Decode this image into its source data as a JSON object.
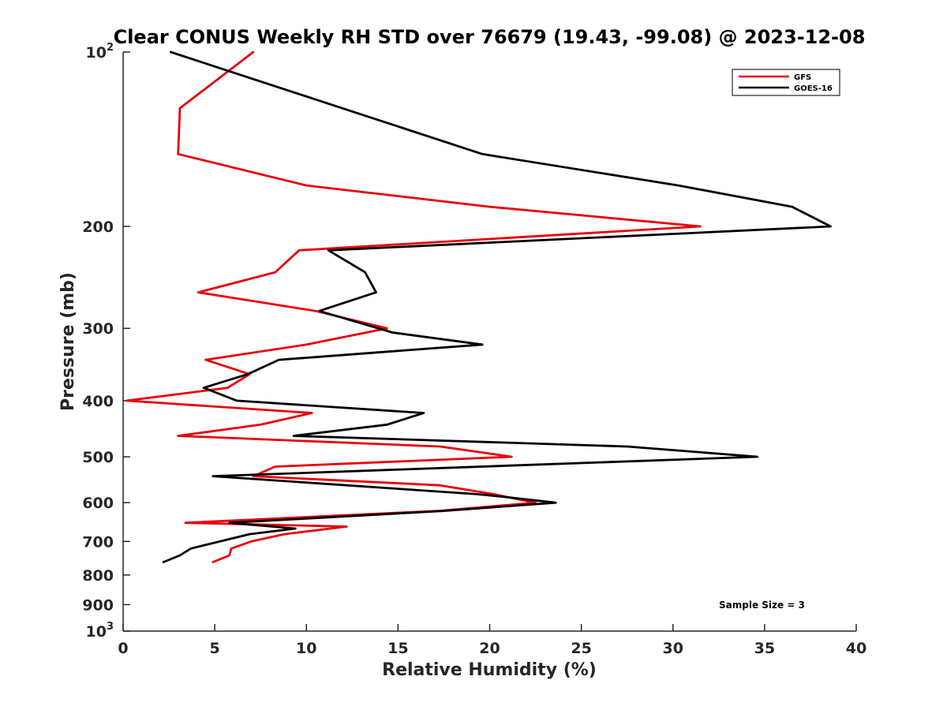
{
  "chart_data": {
    "type": "line",
    "title": "Clear CONUS Weekly RH STD over 76679 (19.43, -99.08) @ 2023-12-08",
    "xlabel": "Relative Humidity (%)",
    "ylabel": "Pressure (mb)",
    "xlim": [
      0,
      40
    ],
    "ylim": [
      100,
      1000
    ],
    "y_scale": "log",
    "y_reversed": true,
    "x_ticks": [
      "0",
      "5",
      "10",
      "15",
      "20",
      "25",
      "30",
      "35",
      "40"
    ],
    "y_ticks": [
      {
        "value": 100,
        "base": "10",
        "exp": "2"
      },
      {
        "value": 200,
        "base": "200",
        "exp": ""
      },
      {
        "value": 300,
        "base": "300",
        "exp": ""
      },
      {
        "value": 400,
        "base": "400",
        "exp": ""
      },
      {
        "value": 500,
        "base": "500",
        "exp": ""
      },
      {
        "value": 600,
        "base": "600",
        "exp": ""
      },
      {
        "value": 700,
        "base": "700",
        "exp": ""
      },
      {
        "value": 800,
        "base": "800",
        "exp": ""
      },
      {
        "value": 900,
        "base": "900",
        "exp": ""
      },
      {
        "value": 1000,
        "base": "10",
        "exp": "3"
      }
    ],
    "grid": false,
    "legend_position": "top-right",
    "annotation": "Sample Size = 3",
    "series": [
      {
        "name": "GFS",
        "color": "#e8000b",
        "points": [
          {
            "x": 7.1,
            "y": 100
          },
          {
            "x": 3.1,
            "y": 125
          },
          {
            "x": 3.0,
            "y": 150
          },
          {
            "x": 10.0,
            "y": 170
          },
          {
            "x": 20.0,
            "y": 185
          },
          {
            "x": 31.5,
            "y": 200
          },
          {
            "x": 9.6,
            "y": 220
          },
          {
            "x": 8.3,
            "y": 240
          },
          {
            "x": 4.1,
            "y": 260
          },
          {
            "x": 10.5,
            "y": 280
          },
          {
            "x": 14.4,
            "y": 300
          },
          {
            "x": 10.0,
            "y": 320
          },
          {
            "x": 4.5,
            "y": 340
          },
          {
            "x": 6.9,
            "y": 360
          },
          {
            "x": 5.7,
            "y": 380
          },
          {
            "x": 0.2,
            "y": 400
          },
          {
            "x": 10.3,
            "y": 420
          },
          {
            "x": 7.5,
            "y": 440
          },
          {
            "x": 3.0,
            "y": 460
          },
          {
            "x": 17.3,
            "y": 480
          },
          {
            "x": 21.2,
            "y": 500
          },
          {
            "x": 8.3,
            "y": 520
          },
          {
            "x": 7.1,
            "y": 540
          },
          {
            "x": 17.3,
            "y": 560
          },
          {
            "x": 20.2,
            "y": 580
          },
          {
            "x": 22.5,
            "y": 600
          },
          {
            "x": 17.2,
            "y": 620
          },
          {
            "x": 3.4,
            "y": 650
          },
          {
            "x": 12.2,
            "y": 660
          },
          {
            "x": 8.8,
            "y": 680
          },
          {
            "x": 7.0,
            "y": 700
          },
          {
            "x": 5.9,
            "y": 720
          },
          {
            "x": 5.8,
            "y": 740
          },
          {
            "x": 4.9,
            "y": 760
          }
        ]
      },
      {
        "name": "GOES-16",
        "color": "#000000",
        "points": [
          {
            "x": 2.6,
            "y": 100
          },
          {
            "x": 19.6,
            "y": 150
          },
          {
            "x": 30.3,
            "y": 170
          },
          {
            "x": 36.5,
            "y": 185
          },
          {
            "x": 38.6,
            "y": 200
          },
          {
            "x": 11.2,
            "y": 220
          },
          {
            "x": 13.2,
            "y": 240
          },
          {
            "x": 13.8,
            "y": 260
          },
          {
            "x": 10.7,
            "y": 280
          },
          {
            "x": 14.7,
            "y": 305
          },
          {
            "x": 19.6,
            "y": 320
          },
          {
            "x": 8.5,
            "y": 340
          },
          {
            "x": 6.8,
            "y": 360
          },
          {
            "x": 4.4,
            "y": 380
          },
          {
            "x": 6.2,
            "y": 400
          },
          {
            "x": 16.4,
            "y": 420
          },
          {
            "x": 14.4,
            "y": 440
          },
          {
            "x": 9.3,
            "y": 460
          },
          {
            "x": 27.5,
            "y": 480
          },
          {
            "x": 34.6,
            "y": 500
          },
          {
            "x": 4.9,
            "y": 540
          },
          {
            "x": 19.3,
            "y": 580
          },
          {
            "x": 20.5,
            "y": 585
          },
          {
            "x": 23.6,
            "y": 600
          },
          {
            "x": 17.5,
            "y": 620
          },
          {
            "x": 5.8,
            "y": 650
          },
          {
            "x": 9.4,
            "y": 665
          },
          {
            "x": 6.9,
            "y": 680
          },
          {
            "x": 3.7,
            "y": 720
          },
          {
            "x": 3.1,
            "y": 740
          },
          {
            "x": 2.2,
            "y": 760
          }
        ]
      }
    ]
  }
}
